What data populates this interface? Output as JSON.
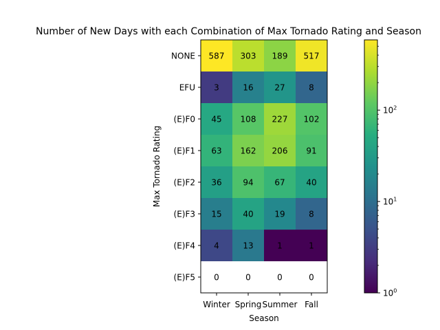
{
  "chart_data": {
    "type": "heatmap",
    "title": "Number of New Days with each Combination of Max Tornado Rating and Season",
    "xlabel": "Season",
    "ylabel": "Max Tornado Rating",
    "x_categories": [
      "Winter",
      "Spring",
      "Summer",
      "Fall"
    ],
    "y_categories": [
      "NONE",
      "EFU",
      "(E)F0",
      "(E)F1",
      "(E)F2",
      "(E)F3",
      "(E)F4",
      "(E)F5"
    ],
    "values": [
      [
        587,
        303,
        189,
        517
      ],
      [
        3,
        16,
        27,
        8
      ],
      [
        45,
        108,
        227,
        102
      ],
      [
        63,
        162,
        206,
        91
      ],
      [
        36,
        94,
        67,
        40
      ],
      [
        15,
        40,
        19,
        8
      ],
      [
        4,
        13,
        1,
        1
      ],
      [
        0,
        0,
        0,
        0
      ]
    ],
    "colorscale": "viridis",
    "color_scale_type": "log",
    "zero_cell_color": "#ffffff",
    "colorbar": {
      "range": [
        1,
        587
      ],
      "ticks": [
        {
          "value": 1,
          "base": "10",
          "exp": "0"
        },
        {
          "value": 10,
          "base": "10",
          "exp": "1"
        },
        {
          "value": 100,
          "base": "10",
          "exp": "2"
        }
      ]
    },
    "grid": false
  }
}
